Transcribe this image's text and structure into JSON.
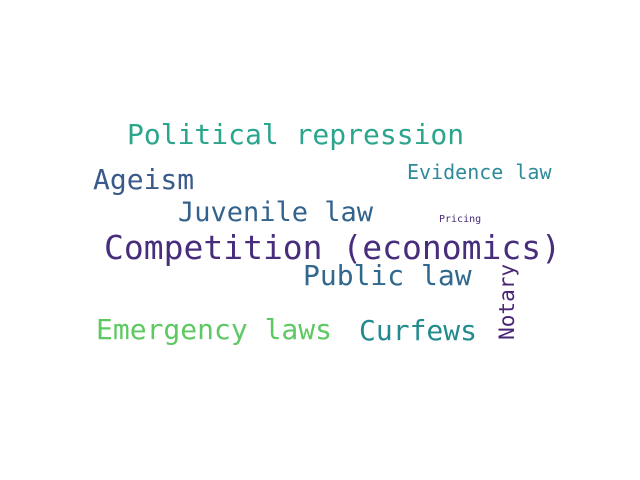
{
  "cloud": {
    "words": [
      {
        "text": "Political repression",
        "color": "#2ca58d"
      },
      {
        "text": "Ageism",
        "color": "#3b5a8c"
      },
      {
        "text": "Evidence law",
        "color": "#2e8b9a"
      },
      {
        "text": "Juvenile law",
        "color": "#33638d"
      },
      {
        "text": "Pricing",
        "color": "#482878"
      },
      {
        "text": "Competition (economics)",
        "color": "#472d7b"
      },
      {
        "text": "Public law",
        "color": "#31688e"
      },
      {
        "text": "Notary",
        "color": "#482475"
      },
      {
        "text": "Emergency laws",
        "color": "#5ec962"
      },
      {
        "text": "Curfews",
        "color": "#238a8d"
      }
    ]
  }
}
